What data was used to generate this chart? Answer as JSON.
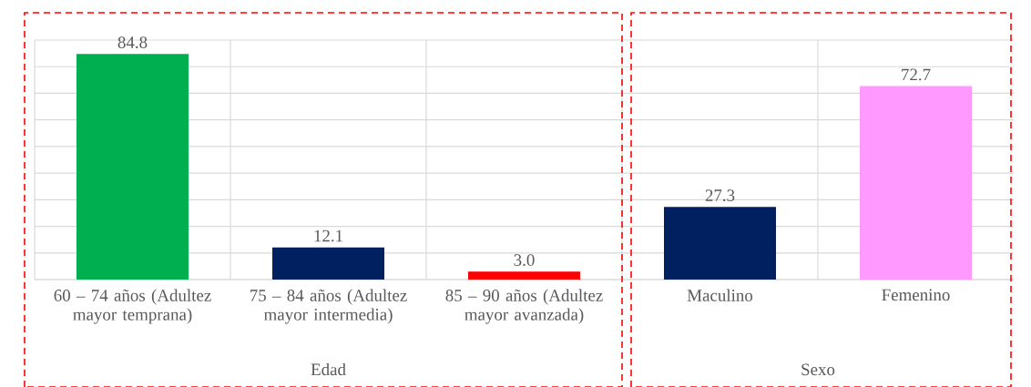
{
  "chart_data": {
    "type": "bar",
    "categories": [
      "60 – 74 años (Adultez mayor temprana)",
      "75 – 84 años (Adultez mayor intermedia)",
      "85 – 90 años (Adultez mayor avanzada)",
      "Maculino",
      "Femenino"
    ],
    "values": [
      84.8,
      12.1,
      3.0,
      27.3,
      72.7
    ],
    "colors": [
      "#00b050",
      "#002060",
      "#ff0000",
      "#002060",
      "#ff99ff"
    ],
    "ylim": [
      0,
      90
    ],
    "yticks": [
      {
        "value": 0,
        "label": null
      },
      {
        "value": 10,
        "label": null
      },
      {
        "value": 20,
        "label": null
      },
      {
        "value": 30,
        "label": null
      },
      {
        "value": 40,
        "label": null
      },
      {
        "value": 50,
        "label": null
      },
      {
        "value": 60,
        "label": null
      },
      {
        "value": 70,
        "label": null
      },
      {
        "value": 80,
        "label": null
      },
      {
        "value": 90,
        "label": null
      }
    ],
    "tick_labels": "x",
    "grid": true,
    "value_labels": [
      "84.8",
      "12.1",
      "3.0",
      "27.3",
      "72.7"
    ],
    "annotations": [
      "Edad",
      "Sexo"
    ]
  }
}
